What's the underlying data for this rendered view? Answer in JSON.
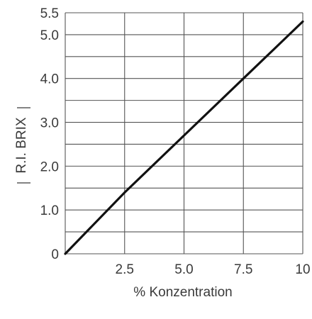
{
  "chart_data": {
    "type": "line",
    "xlabel": "% Konzentration",
    "ylabel": "R.I. BRIX",
    "xlim": [
      0,
      10
    ],
    "ylim": [
      0,
      5.5
    ],
    "x_ticks": [
      "2.5",
      "5.0",
      "7.5",
      "10"
    ],
    "y_ticks": [
      "0",
      "1.0",
      "2.0",
      "3.0",
      "4.0",
      "5.0",
      "5.5"
    ],
    "grid": true,
    "series": [
      {
        "x": [
          0,
          2.5,
          5.0,
          7.5,
          10
        ],
        "y": [
          0,
          1.4,
          2.7,
          4.0,
          5.3
        ]
      }
    ]
  }
}
